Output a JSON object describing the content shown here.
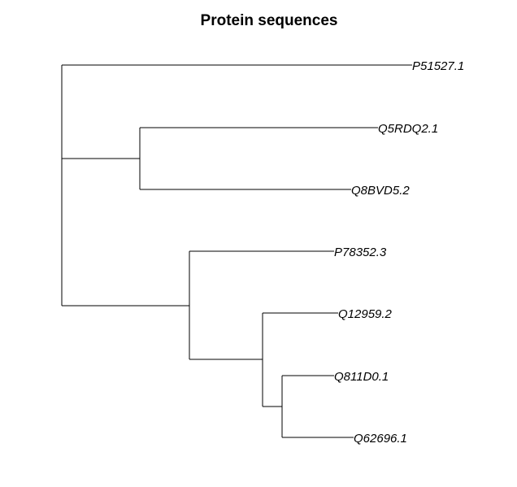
{
  "title": "Protein sequences",
  "tree": {
    "type": "phylogram",
    "root": {
      "children": [
        {
          "label": "P51527.1"
        },
        {
          "children": [
            {
              "children": [
                {
                  "label": "Q5RDQ2.1"
                },
                {
                  "label": "Q8BVD5.2"
                }
              ]
            },
            {
              "children": [
                {
                  "label": "P78352.3"
                },
                {
                  "children": [
                    {
                      "label": "Q12959.2"
                    },
                    {
                      "children": [
                        {
                          "label": "Q811D0.1"
                        },
                        {
                          "label": "Q62696.1"
                        }
                      ]
                    }
                  ]
                }
              ]
            }
          ]
        }
      ]
    },
    "tips": [
      "P51527.1",
      "Q5RDQ2.1",
      "Q8BVD5.2",
      "P78352.3",
      "Q12959.2",
      "Q811D0.1",
      "Q62696.1"
    ]
  }
}
